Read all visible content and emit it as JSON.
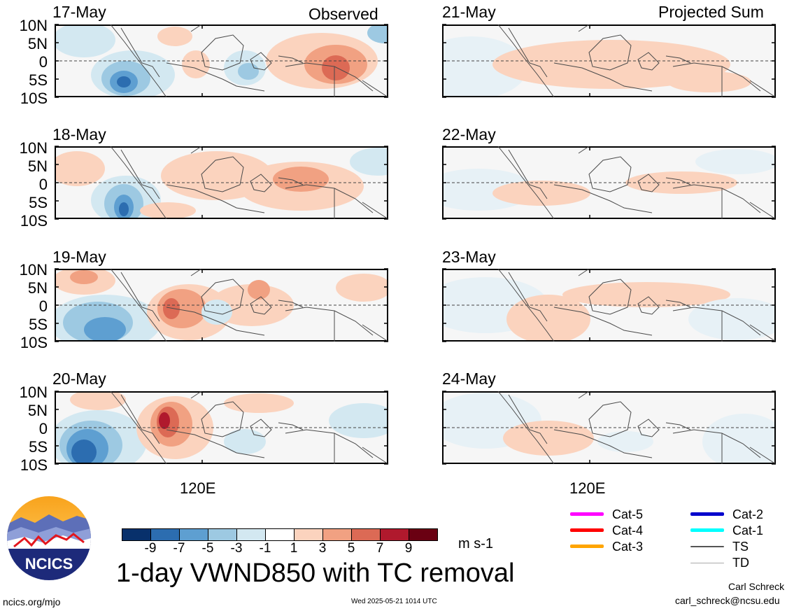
{
  "headers": {
    "left": "Observed",
    "right": "Projected Sum"
  },
  "lat_labels": [
    "10N",
    "5N",
    "0",
    "5S",
    "10S"
  ],
  "lon_label": "120E",
  "observed_dates": [
    "17-May",
    "18-May",
    "19-May",
    "20-May"
  ],
  "projected_dates": [
    "21-May",
    "22-May",
    "23-May",
    "24-May"
  ],
  "colorbar": {
    "ticks": [
      "-9",
      "-7",
      "-5",
      "-3",
      "-1",
      "1",
      "3",
      "5",
      "7",
      "9"
    ],
    "colors": [
      "#08306b",
      "#2c6db0",
      "#5e9fd1",
      "#9dc9e2",
      "#d3e8f1",
      "#ffffff",
      "#fbd3be",
      "#f1a182",
      "#dc6a55",
      "#b0192d",
      "#6a0012"
    ],
    "unit": "m s-1"
  },
  "legend": [
    {
      "label": "Cat-5",
      "color": "#ff00ff"
    },
    {
      "label": "Cat-4",
      "color": "#ff0000"
    },
    {
      "label": "Cat-3",
      "color": "#ffa500"
    },
    {
      "label": "Cat-2",
      "color": "#0000cc"
    },
    {
      "label": "Cat-1",
      "color": "#00ffff"
    },
    {
      "label": "TS",
      "color": "#555555"
    },
    {
      "label": "TD",
      "color": "#aaaaaa"
    }
  ],
  "logo": {
    "text": "NCICS"
  },
  "title": "1-day VWND850 with TC removal",
  "footer": {
    "url": "ncics.org/mjo",
    "timestamp": "Wed 2025-05-21 1014 UTC",
    "author": "Carl Schreck",
    "email": "carl_schreck@ncsu.edu"
  }
}
